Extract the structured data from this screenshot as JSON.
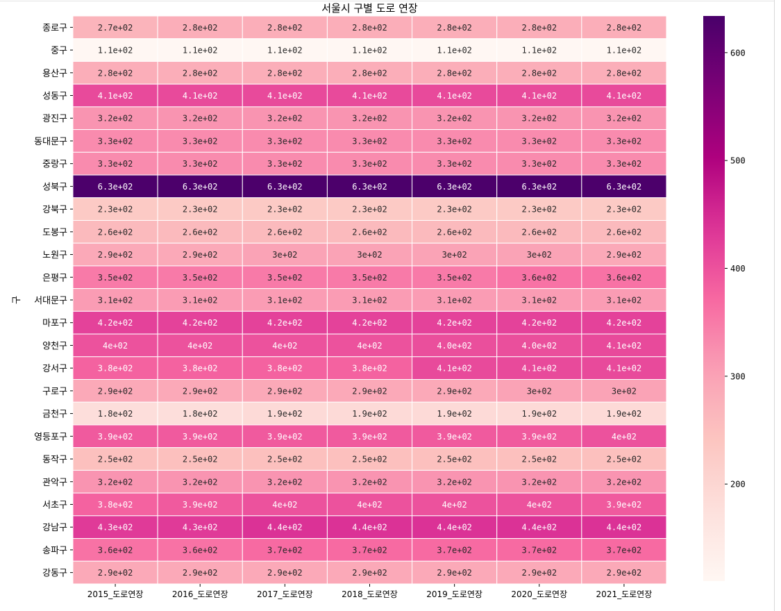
{
  "chart_data": {
    "type": "heatmap",
    "title": "서울시 구별 도로 연장",
    "xlabel": "",
    "ylabel": "구",
    "columns": [
      "2015_도로연장",
      "2016_도로연장",
      "2017_도로연장",
      "2018_도로연장",
      "2019_도로연장",
      "2020_도로연장",
      "2021_도로연장"
    ],
    "rows": [
      "종로구",
      "중구",
      "용산구",
      "성동구",
      "광진구",
      "동대문구",
      "중랑구",
      "성북구",
      "강북구",
      "도봉구",
      "노원구",
      "은평구",
      "서대문구",
      "마포구",
      "양천구",
      "강서구",
      "구로구",
      "금천구",
      "영등포구",
      "동작구",
      "관악구",
      "서초구",
      "강남구",
      "송파구",
      "강동구"
    ],
    "values": [
      [
        270,
        280,
        280,
        280,
        280,
        280,
        280
      ],
      [
        110,
        110,
        110,
        110,
        110,
        110,
        110
      ],
      [
        280,
        280,
        280,
        280,
        280,
        280,
        280
      ],
      [
        410,
        410,
        410,
        410,
        410,
        410,
        410
      ],
      [
        320,
        320,
        320,
        320,
        320,
        320,
        320
      ],
      [
        330,
        330,
        330,
        330,
        330,
        330,
        330
      ],
      [
        330,
        330,
        330,
        330,
        330,
        330,
        330
      ],
      [
        630,
        630,
        630,
        630,
        630,
        630,
        630
      ],
      [
        230,
        230,
        230,
        230,
        230,
        230,
        230
      ],
      [
        260,
        260,
        260,
        260,
        260,
        260,
        260
      ],
      [
        290,
        290,
        300,
        300,
        300,
        300,
        290
      ],
      [
        350,
        350,
        350,
        350,
        350,
        360,
        360
      ],
      [
        310,
        310,
        310,
        310,
        310,
        310,
        310
      ],
      [
        420,
        420,
        420,
        420,
        420,
        420,
        420
      ],
      [
        400,
        400,
        400,
        400,
        404,
        404,
        410
      ],
      [
        380,
        380,
        380,
        380,
        410,
        410,
        410
      ],
      [
        290,
        290,
        290,
        290,
        290,
        300,
        300
      ],
      [
        180,
        180,
        190,
        190,
        190,
        190,
        190
      ],
      [
        390,
        390,
        390,
        390,
        390,
        390,
        400
      ],
      [
        250,
        250,
        250,
        250,
        250,
        250,
        250
      ],
      [
        320,
        320,
        320,
        320,
        320,
        320,
        320
      ],
      [
        380,
        390,
        400,
        400,
        400,
        400,
        390
      ],
      [
        430,
        430,
        440,
        440,
        440,
        440,
        440
      ],
      [
        360,
        360,
        370,
        370,
        370,
        370,
        370
      ],
      [
        290,
        290,
        290,
        290,
        290,
        290,
        290
      ]
    ],
    "annotations": [
      [
        "2.7e+02",
        "2.8e+02",
        "2.8e+02",
        "2.8e+02",
        "2.8e+02",
        "2.8e+02",
        "2.8e+02"
      ],
      [
        "1.1e+02",
        "1.1e+02",
        "1.1e+02",
        "1.1e+02",
        "1.1e+02",
        "1.1e+02",
        "1.1e+02"
      ],
      [
        "2.8e+02",
        "2.8e+02",
        "2.8e+02",
        "2.8e+02",
        "2.8e+02",
        "2.8e+02",
        "2.8e+02"
      ],
      [
        "4.1e+02",
        "4.1e+02",
        "4.1e+02",
        "4.1e+02",
        "4.1e+02",
        "4.1e+02",
        "4.1e+02"
      ],
      [
        "3.2e+02",
        "3.2e+02",
        "3.2e+02",
        "3.2e+02",
        "3.2e+02",
        "3.2e+02",
        "3.2e+02"
      ],
      [
        "3.3e+02",
        "3.3e+02",
        "3.3e+02",
        "3.3e+02",
        "3.3e+02",
        "3.3e+02",
        "3.3e+02"
      ],
      [
        "3.3e+02",
        "3.3e+02",
        "3.3e+02",
        "3.3e+02",
        "3.3e+02",
        "3.3e+02",
        "3.3e+02"
      ],
      [
        "6.3e+02",
        "6.3e+02",
        "6.3e+02",
        "6.3e+02",
        "6.3e+02",
        "6.3e+02",
        "6.3e+02"
      ],
      [
        "2.3e+02",
        "2.3e+02",
        "2.3e+02",
        "2.3e+02",
        "2.3e+02",
        "2.3e+02",
        "2.3e+02"
      ],
      [
        "2.6e+02",
        "2.6e+02",
        "2.6e+02",
        "2.6e+02",
        "2.6e+02",
        "2.6e+02",
        "2.6e+02"
      ],
      [
        "2.9e+02",
        "2.9e+02",
        "3e+02",
        "3e+02",
        "3e+02",
        "3e+02",
        "2.9e+02"
      ],
      [
        "3.5e+02",
        "3.5e+02",
        "3.5e+02",
        "3.5e+02",
        "3.5e+02",
        "3.6e+02",
        "3.6e+02"
      ],
      [
        "3.1e+02",
        "3.1e+02",
        "3.1e+02",
        "3.1e+02",
        "3.1e+02",
        "3.1e+02",
        "3.1e+02"
      ],
      [
        "4.2e+02",
        "4.2e+02",
        "4.2e+02",
        "4.2e+02",
        "4.2e+02",
        "4.2e+02",
        "4.2e+02"
      ],
      [
        "4e+02",
        "4e+02",
        "4e+02",
        "4e+02",
        "4.0e+02",
        "4.0e+02",
        "4.1e+02"
      ],
      [
        "3.8e+02",
        "3.8e+02",
        "3.8e+02",
        "3.8e+02",
        "4.1e+02",
        "4.1e+02",
        "4.1e+02"
      ],
      [
        "2.9e+02",
        "2.9e+02",
        "2.9e+02",
        "2.9e+02",
        "2.9e+02",
        "3e+02",
        "3e+02"
      ],
      [
        "1.8e+02",
        "1.8e+02",
        "1.9e+02",
        "1.9e+02",
        "1.9e+02",
        "1.9e+02",
        "1.9e+02"
      ],
      [
        "3.9e+02",
        "3.9e+02",
        "3.9e+02",
        "3.9e+02",
        "3.9e+02",
        "3.9e+02",
        "4e+02"
      ],
      [
        "2.5e+02",
        "2.5e+02",
        "2.5e+02",
        "2.5e+02",
        "2.5e+02",
        "2.5e+02",
        "2.5e+02"
      ],
      [
        "3.2e+02",
        "3.2e+02",
        "3.2e+02",
        "3.2e+02",
        "3.2e+02",
        "3.2e+02",
        "3.2e+02"
      ],
      [
        "3.8e+02",
        "3.9e+02",
        "4e+02",
        "4e+02",
        "4e+02",
        "4e+02",
        "3.9e+02"
      ],
      [
        "4.3e+02",
        "4.3e+02",
        "4.4e+02",
        "4.4e+02",
        "4.4e+02",
        "4.4e+02",
        "4.4e+02"
      ],
      [
        "3.6e+02",
        "3.6e+02",
        "3.7e+02",
        "3.7e+02",
        "3.7e+02",
        "3.7e+02",
        "3.7e+02"
      ],
      [
        "2.9e+02",
        "2.9e+02",
        "2.9e+02",
        "2.9e+02",
        "2.9e+02",
        "2.9e+02",
        "2.9e+02"
      ]
    ],
    "colormap": "RdPu",
    "colorbar": {
      "vmin": 110,
      "vmax": 634,
      "ticks": [
        200,
        300,
        400,
        500,
        600
      ]
    },
    "cell_border_color": "#ffffff",
    "grid": false
  }
}
